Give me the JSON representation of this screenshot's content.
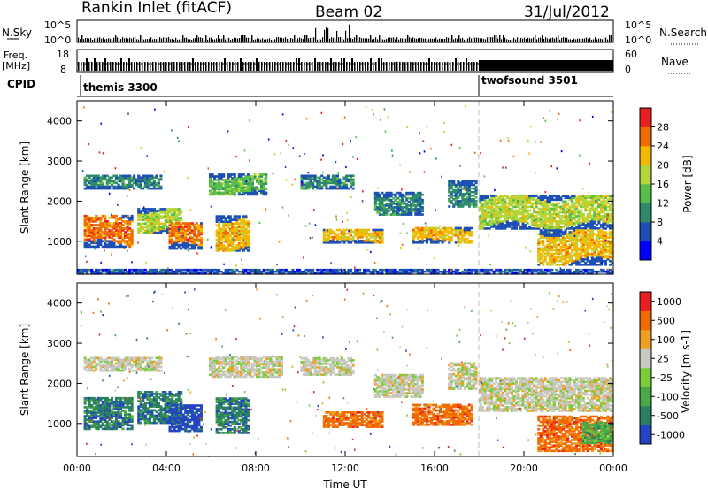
{
  "header": {
    "site": "Rankin Inlet (fitACF)",
    "beam": "Beam 02",
    "date": "31/Jul/2012"
  },
  "housekeeping": {
    "nsky_label": "N.Sky",
    "nsearch_label": "N.Search",
    "noise_tick_high": "10^5",
    "noise_tick_low": "10^0",
    "freq_label_line1": "Freq.",
    "freq_label_line2": "[MHz]",
    "freq_tick_high": "18",
    "freq_tick_low": "8",
    "nave_label": "Nave",
    "nave_tick_high": "60",
    "nave_tick_low": "0",
    "cpid_label": "CPID",
    "cpid_modes": [
      {
        "name": "themis 3300",
        "start_hour": 0
      },
      {
        "name": "twofsound 3501",
        "start_hour": 18
      }
    ]
  },
  "chart_data": [
    {
      "type": "heatmap",
      "name": "power",
      "ylabel": "Slant Range [km]",
      "xlabel": "Time UT",
      "xlim": [
        0,
        24
      ],
      "ylim": [
        180,
        4500
      ],
      "x_ticks": [
        "00:00",
        "04:00",
        "08:00",
        "12:00",
        "16:00",
        "20:00",
        "00:00"
      ],
      "y_ticks": [
        1000,
        2000,
        3000,
        4000
      ],
      "colorbar": {
        "label": "Power [dB]",
        "ticks": [
          "4",
          "8",
          "12",
          "16",
          "20",
          "24",
          "28"
        ],
        "colors": [
          "#0000ff",
          "#1d50b4",
          "#2f8a6a",
          "#58be4a",
          "#b5d63a",
          "#f5b800",
          "#f26a00",
          "#e82020"
        ]
      },
      "bands": [
        {
          "t0": 0.3,
          "t1": 3.8,
          "r0": 2300,
          "r1": 2650,
          "level": 2
        },
        {
          "t0": 2.7,
          "t1": 4.6,
          "r0": 1200,
          "r1": 1800,
          "level": 4
        },
        {
          "t0": 0.3,
          "t1": 2.5,
          "r0": 850,
          "r1": 1650,
          "level": 6
        },
        {
          "t0": 4.1,
          "t1": 5.5,
          "r0": 800,
          "r1": 1450,
          "level": 6
        },
        {
          "t0": 5.9,
          "t1": 8.4,
          "r0": 2150,
          "r1": 2650,
          "level": 3
        },
        {
          "t0": 6.2,
          "t1": 7.6,
          "r0": 750,
          "r1": 1650,
          "level": 5
        },
        {
          "t0": 10.0,
          "t1": 12.3,
          "r0": 2300,
          "r1": 2650,
          "level": 2
        },
        {
          "t0": 11.0,
          "t1": 13.6,
          "r0": 950,
          "r1": 1300,
          "level": 5
        },
        {
          "t0": 13.3,
          "t1": 15.4,
          "r0": 1650,
          "r1": 2200,
          "level": 2
        },
        {
          "t0": 15.0,
          "t1": 17.7,
          "r0": 950,
          "r1": 1350,
          "level": 5
        },
        {
          "t0": 16.6,
          "t1": 17.9,
          "r0": 1850,
          "r1": 2500,
          "level": 2
        },
        {
          "t0": 18.0,
          "t1": 24.0,
          "r0": 1300,
          "r1": 2150,
          "level": 4
        },
        {
          "t0": 20.6,
          "t1": 24.0,
          "r0": 400,
          "r1": 1300,
          "level": 5
        },
        {
          "t0": 0.0,
          "t1": 24.0,
          "r0": 180,
          "r1": 300,
          "level": 1
        }
      ]
    },
    {
      "type": "heatmap",
      "name": "velocity",
      "ylabel": "Slant Range [km]",
      "xlabel": "Time UT",
      "xlim": [
        0,
        24
      ],
      "ylim": [
        180,
        4500
      ],
      "x_ticks": [
        "00:00",
        "04:00",
        "08:00",
        "12:00",
        "16:00",
        "20:00",
        "00:00"
      ],
      "y_ticks": [
        1000,
        2000,
        3000,
        4000
      ],
      "colorbar": {
        "label": "Velocity [m s-1]",
        "ticks": [
          "1000",
          "500",
          "100",
          "25",
          "-25",
          "-100",
          "-500",
          "-1000"
        ],
        "colors": [
          "#2444c4",
          "#2a8060",
          "#4aa848",
          "#7acc38",
          "#c8c8c0",
          "#f0a020",
          "#f26a00",
          "#e82020"
        ]
      },
      "bands": [
        {
          "t0": 0.3,
          "t1": 3.8,
          "r0": 2300,
          "r1": 2650,
          "level": 4
        },
        {
          "t0": 0.3,
          "t1": 2.5,
          "r0": 850,
          "r1": 1650,
          "level": 1
        },
        {
          "t0": 2.7,
          "t1": 4.6,
          "r0": 1000,
          "r1": 1800,
          "level": 1
        },
        {
          "t0": 4.1,
          "t1": 5.5,
          "r0": 800,
          "r1": 1450,
          "level": 0
        },
        {
          "t0": 5.9,
          "t1": 9.1,
          "r0": 2150,
          "r1": 2650,
          "level": 4
        },
        {
          "t0": 6.2,
          "t1": 7.6,
          "r0": 750,
          "r1": 1650,
          "level": 1
        },
        {
          "t0": 10.0,
          "t1": 12.3,
          "r0": 2200,
          "r1": 2650,
          "level": 4
        },
        {
          "t0": 11.0,
          "t1": 13.6,
          "r0": 900,
          "r1": 1300,
          "level": 6
        },
        {
          "t0": 13.3,
          "t1": 15.4,
          "r0": 1650,
          "r1": 2200,
          "level": 4
        },
        {
          "t0": 15.0,
          "t1": 17.7,
          "r0": 950,
          "r1": 1450,
          "level": 6
        },
        {
          "t0": 16.6,
          "t1": 17.9,
          "r0": 1850,
          "r1": 2500,
          "level": 4
        },
        {
          "t0": 18.0,
          "t1": 24.0,
          "r0": 1300,
          "r1": 2150,
          "level": 4
        },
        {
          "t0": 20.6,
          "t1": 24.0,
          "r0": 300,
          "r1": 1200,
          "level": 6
        },
        {
          "t0": 22.6,
          "t1": 24.0,
          "r0": 500,
          "r1": 1000,
          "level": 2
        }
      ]
    }
  ]
}
